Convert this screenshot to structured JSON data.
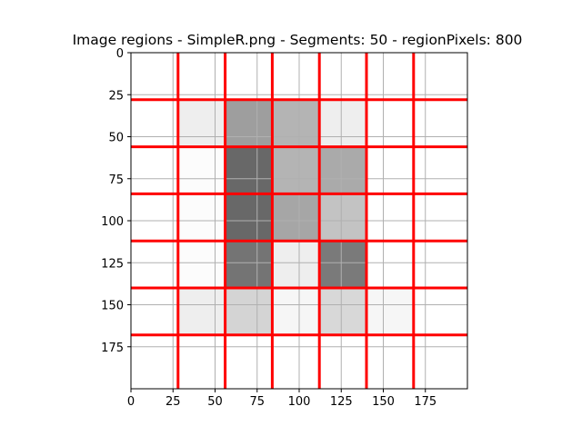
{
  "chart_data": {
    "type": "heatmap",
    "title": "Image regions - SimpleR.png - Segments: 50 - regionPixels: 800",
    "xlim": [
      0,
      200
    ],
    "ylim": [
      200,
      0
    ],
    "x_ticks": [
      0,
      25,
      50,
      75,
      100,
      125,
      150,
      175
    ],
    "y_ticks": [
      0,
      25,
      50,
      75,
      100,
      125,
      150,
      175
    ],
    "grid": true,
    "grid_color": "#b0b0b0",
    "cell_size": 28,
    "region_boundaries": [
      28,
      56,
      84,
      112,
      140,
      168
    ],
    "boundary_color": "#ff0000",
    "background_gray": 255,
    "cells": [
      {
        "col": 1,
        "row": 1,
        "gray": 238
      },
      {
        "col": 2,
        "row": 1,
        "gray": 158
      },
      {
        "col": 3,
        "row": 1,
        "gray": 180
      },
      {
        "col": 4,
        "row": 1,
        "gray": 238
      },
      {
        "col": 1,
        "row": 2,
        "gray": 252
      },
      {
        "col": 2,
        "row": 2,
        "gray": 104
      },
      {
        "col": 3,
        "row": 2,
        "gray": 180
      },
      {
        "col": 4,
        "row": 2,
        "gray": 170
      },
      {
        "col": 1,
        "row": 3,
        "gray": 252
      },
      {
        "col": 2,
        "row": 3,
        "gray": 104
      },
      {
        "col": 3,
        "row": 3,
        "gray": 166
      },
      {
        "col": 4,
        "row": 3,
        "gray": 195
      },
      {
        "col": 1,
        "row": 4,
        "gray": 252
      },
      {
        "col": 2,
        "row": 4,
        "gray": 116
      },
      {
        "col": 3,
        "row": 4,
        "gray": 238
      },
      {
        "col": 4,
        "row": 4,
        "gray": 122
      },
      {
        "col": 1,
        "row": 5,
        "gray": 238
      },
      {
        "col": 2,
        "row": 5,
        "gray": 212
      },
      {
        "col": 3,
        "row": 5,
        "gray": 246
      },
      {
        "col": 4,
        "row": 5,
        "gray": 216
      },
      {
        "col": 5,
        "row": 5,
        "gray": 246
      }
    ]
  }
}
